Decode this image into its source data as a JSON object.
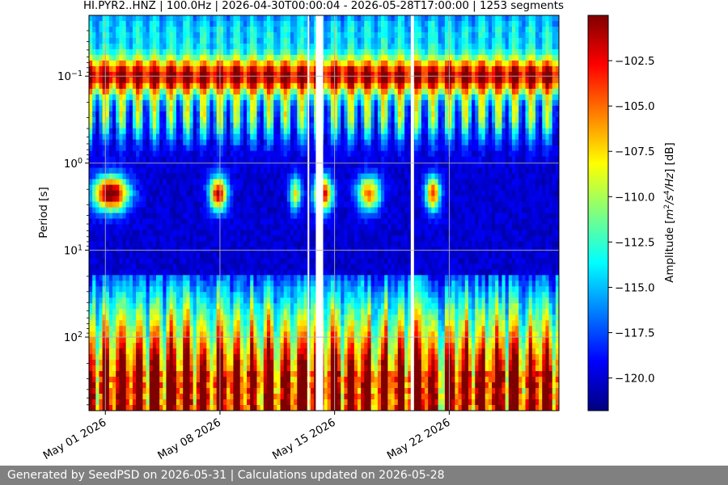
{
  "chart_data": {
    "type": "heatmap",
    "title": "HI.PYR2..HNZ | 100.0Hz | 2026-04-30T00:00:04 - 2026-05-28T17:00:00 | 1253 segments",
    "ylabel": "Period [s]",
    "colorbar_label": "Amplitude [m²/s⁴/Hz] [dB]",
    "colorbar_label_parts": {
      "prefix": "Amplitude [",
      "m": "m",
      "sup1": "2",
      "s": "/s",
      "sup2": "4",
      "hz": "/Hz",
      "suffix": "] [dB]"
    },
    "y_scale": "log",
    "ylim": [
      0.02,
      700
    ],
    "y_inverted": true,
    "x_tick_labels": [
      "May 01 2026",
      "May 08 2026",
      "May 15 2026",
      "May 22 2026"
    ],
    "x_tick_days": [
      1,
      8,
      15,
      22
    ],
    "xlim_days": [
      0.0,
      28.7
    ],
    "y_ticks": [
      {
        "value": 0.1,
        "base": "10",
        "exp": "−1"
      },
      {
        "value": 1,
        "base": "10",
        "exp": "0"
      },
      {
        "value": 10,
        "base": "10",
        "exp": "1"
      },
      {
        "value": 100,
        "base": "10",
        "exp": "2"
      }
    ],
    "colorbar_ticks": [
      "−102.5",
      "−105.0",
      "−107.5",
      "−110.0",
      "−112.5",
      "−115.0",
      "−117.5",
      "−120.0"
    ],
    "colorbar_tick_values": [
      -102.5,
      -105.0,
      -107.5,
      -110.0,
      -112.5,
      -115.0,
      -117.5,
      -120.0
    ],
    "colorbar_range": [
      -121.8,
      -100.0
    ],
    "colormap": [
      "#00007f",
      "#0000ff",
      "#007fff",
      "#00ffff",
      "#7fff7f",
      "#ffff00",
      "#ff7f00",
      "#ff0000",
      "#7f0000"
    ],
    "data_gaps_days": [
      [
        13.35,
        13.45
      ],
      [
        13.85,
        14.3
      ],
      [
        19.65,
        19.85
      ]
    ],
    "grid": true,
    "colorbar_position": "right"
  },
  "footer": "Generated by SeedPSD on 2026-05-31 | Calculations updated on 2026-05-28"
}
